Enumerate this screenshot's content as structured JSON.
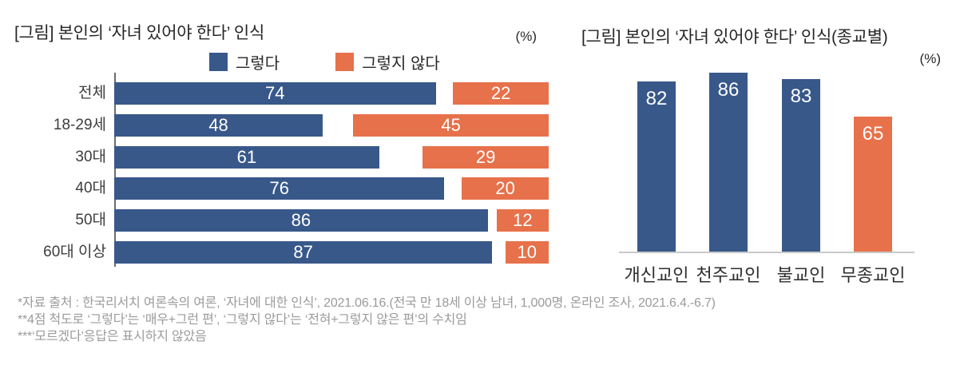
{
  "chart_data": [
    {
      "id": "by-age",
      "type": "bar",
      "orientation": "horizontal",
      "title": "[그림] 본인의 ‘자녀 있어야 한다’ 인식",
      "unit_label": "(%)",
      "legend_position": "top",
      "xlim": [
        0,
        100
      ],
      "grid": false,
      "categories": [
        "전체",
        "18-29세",
        "30대",
        "40대",
        "50대",
        "60대 이상"
      ],
      "series": [
        {
          "name": "그렇다",
          "color": "#38588A",
          "align": "left",
          "values": [
            74,
            48,
            61,
            76,
            86,
            87
          ]
        },
        {
          "name": "그렇지 않다",
          "color": "#E7714A",
          "align": "right",
          "values": [
            22,
            45,
            29,
            20,
            12,
            10
          ]
        }
      ]
    },
    {
      "id": "by-religion",
      "type": "bar",
      "orientation": "vertical",
      "title": "[그림] 본인의 ‘자녀 있어야 한다’ 인식(종교별)",
      "unit_label": "(%)",
      "ylim": [
        0,
        100
      ],
      "grid": false,
      "categories": [
        "개신교인",
        "천주교인",
        "불교인",
        "무종교인"
      ],
      "values": [
        82,
        86,
        83,
        65
      ],
      "bar_colors": [
        "#38588A",
        "#38588A",
        "#38588A",
        "#E7714A"
      ]
    }
  ],
  "footnotes": [
    "*자료 출처 : 한국리서치 여론속의 여론, ‘자녀에 대한 인식’, 2021.06.16.(전국 만 18세 이상 남녀, 1,000명, 온라인 조사, 2021.6.4.-6.7)",
    "**4점 척도로 ‘그렇다’는 ‘매우+그런 편’, ‘그렇지 않다’는 ‘전혀+그렇지 않은 편’의 수치임",
    "***‘모르겠다’응답은 표시하지 않았음"
  ],
  "colors": {
    "agree": "#38588A",
    "disagree": "#E7714A",
    "axis_line": "#6b6b6b",
    "baseline": "#c9c9c9",
    "footnote_text": "#9b9b9b"
  }
}
